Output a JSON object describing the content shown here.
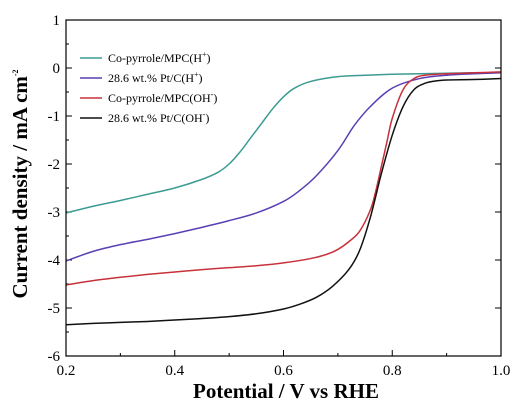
{
  "chart_data": {
    "type": "line",
    "title": "",
    "xlabel": "Potential / V vs RHE",
    "ylabel_main": "Current density / mA cm",
    "ylabel_sup": "-2",
    "xlim": [
      0.2,
      1.0
    ],
    "ylim": [
      -6,
      1
    ],
    "xticks": [
      0.2,
      0.4,
      0.6,
      0.8,
      1.0
    ],
    "xtick_labels": [
      "0.2",
      "0.4",
      "0.6",
      "0.8",
      "1.0"
    ],
    "yticks": [
      1,
      0,
      -1,
      -2,
      -3,
      -4,
      -5,
      -6
    ],
    "ytick_labels": [
      "1",
      "0",
      "-1",
      "-2",
      "-3",
      "-4",
      "-5",
      "-6"
    ],
    "grid": false,
    "legend_position": "top-left",
    "series": [
      {
        "name": "Co-pyrrole/MPC(H⁺)",
        "legend_main": "Co-pyrrole/MPC(H",
        "legend_sup": "+",
        "legend_tail": ")",
        "color": "#3c9b92",
        "x": [
          0.2,
          0.25,
          0.3,
          0.35,
          0.4,
          0.45,
          0.48,
          0.5,
          0.52,
          0.54,
          0.56,
          0.58,
          0.6,
          0.62,
          0.65,
          0.7,
          0.75,
          0.8,
          0.85,
          0.9,
          0.95,
          1.0
        ],
        "y": [
          -3.02,
          -2.88,
          -2.76,
          -2.63,
          -2.5,
          -2.32,
          -2.17,
          -2.0,
          -1.75,
          -1.45,
          -1.15,
          -0.85,
          -0.6,
          -0.42,
          -0.28,
          -0.18,
          -0.15,
          -0.13,
          -0.12,
          -0.11,
          -0.1,
          -0.1
        ]
      },
      {
        "name": "28.6 wt.% Pt/C(H⁺)",
        "legend_main": "28.6 wt.% Pt/C(H",
        "legend_sup": "+",
        "legend_tail": ")",
        "color": "#5a3fb4",
        "x": [
          0.2,
          0.25,
          0.3,
          0.35,
          0.4,
          0.45,
          0.5,
          0.55,
          0.6,
          0.63,
          0.66,
          0.7,
          0.73,
          0.76,
          0.8,
          0.85,
          0.9,
          0.95,
          1.0
        ],
        "y": [
          -4.02,
          -3.82,
          -3.68,
          -3.57,
          -3.45,
          -3.32,
          -3.18,
          -3.02,
          -2.78,
          -2.55,
          -2.25,
          -1.72,
          -1.2,
          -0.8,
          -0.42,
          -0.22,
          -0.15,
          -0.12,
          -0.1
        ]
      },
      {
        "name": "Co-pyrrole/MPC(OH⁻)",
        "legend_main": "Co-pyrrole/MPC(OH",
        "legend_sup": "-",
        "legend_tail": ")",
        "color": "#c8313a",
        "x": [
          0.2,
          0.25,
          0.3,
          0.35,
          0.4,
          0.45,
          0.5,
          0.55,
          0.6,
          0.65,
          0.68,
          0.7,
          0.72,
          0.74,
          0.76,
          0.77,
          0.78,
          0.79,
          0.8,
          0.82,
          0.84,
          0.86,
          0.9,
          0.95,
          1.0
        ],
        "y": [
          -4.52,
          -4.43,
          -4.36,
          -4.3,
          -4.25,
          -4.2,
          -4.16,
          -4.12,
          -4.06,
          -3.97,
          -3.88,
          -3.78,
          -3.62,
          -3.4,
          -2.95,
          -2.55,
          -2.05,
          -1.55,
          -1.05,
          -0.45,
          -0.22,
          -0.15,
          -0.12,
          -0.1,
          -0.08
        ]
      },
      {
        "name": "28.6 wt.% Pt/C(OH⁻)",
        "legend_main": "28.6 wt.% Pt/C(OH",
        "legend_sup": "-",
        "legend_tail": ")",
        "color": "#111111",
        "x": [
          0.2,
          0.25,
          0.3,
          0.35,
          0.4,
          0.45,
          0.5,
          0.55,
          0.6,
          0.63,
          0.66,
          0.69,
          0.72,
          0.74,
          0.76,
          0.78,
          0.8,
          0.82,
          0.84,
          0.86,
          0.88,
          0.9,
          0.95,
          1.0
        ],
        "y": [
          -5.35,
          -5.32,
          -5.3,
          -5.28,
          -5.25,
          -5.22,
          -5.18,
          -5.12,
          -5.02,
          -4.92,
          -4.78,
          -4.55,
          -4.2,
          -3.8,
          -3.1,
          -2.2,
          -1.4,
          -0.8,
          -0.45,
          -0.32,
          -0.27,
          -0.25,
          -0.24,
          -0.22
        ]
      }
    ]
  }
}
